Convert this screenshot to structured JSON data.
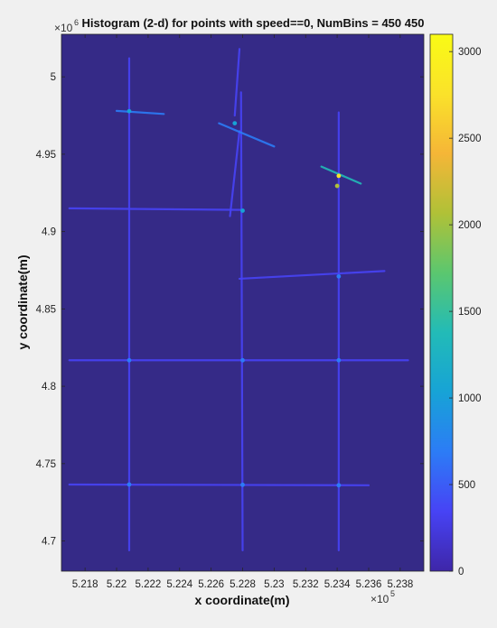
{
  "chart_data": {
    "type": "heatmap",
    "title": "Histogram (2-d) for points with speed==0, NumBins = 450  450",
    "xlabel": "x coordinate(m)",
    "ylabel": "y coordinate(m)",
    "x_exponent_label": "×10",
    "x_exponent": "5",
    "y_exponent_label": "×10",
    "y_exponent": "6",
    "xlim": [
      5.2165,
      5.2395
    ],
    "ylim": [
      4.6805,
      5.0275
    ],
    "x_ticks": [
      5.218,
      5.22,
      5.222,
      5.224,
      5.226,
      5.228,
      5.23,
      5.232,
      5.234,
      5.236,
      5.238
    ],
    "x_tick_labels": [
      "5.218",
      "5.22",
      "5.222",
      "5.224",
      "5.226",
      "5.228",
      "5.23",
      "5.232",
      "5.234",
      "5.236",
      "5.238"
    ],
    "y_ticks": [
      4.7,
      4.75,
      4.8,
      4.85,
      4.9,
      4.95,
      5.0
    ],
    "y_tick_labels": [
      "4.7",
      "4.75",
      "4.8",
      "4.85",
      "4.9",
      "4.95",
      "5"
    ],
    "colorbar": {
      "range": [
        0,
        3100
      ],
      "ticks": [
        0,
        500,
        1000,
        1500,
        2000,
        2500,
        3000
      ],
      "tick_labels": [
        "0",
        "500",
        "1000",
        "1500",
        "2000",
        "2500",
        "3000"
      ],
      "colormap": [
        "#3e26a8",
        "#4743f5",
        "#2c7cf6",
        "#17a3d6",
        "#22bbb7",
        "#5bc76f",
        "#b0c137",
        "#f5b637",
        "#fae22a",
        "#f9fb15"
      ]
    },
    "background_color": "#352a87",
    "segments": [
      {
        "name": "road-v1",
        "x": [
          5.2208,
          5.2208
        ],
        "y": [
          4.694,
          5.012
        ],
        "intensity": 450
      },
      {
        "name": "road-v2",
        "x": [
          5.228,
          5.2279
        ],
        "y": [
          4.694,
          4.99
        ],
        "intensity": 400
      },
      {
        "name": "road-v3",
        "x": [
          5.2341,
          5.2341
        ],
        "y": [
          4.694,
          4.977
        ],
        "intensity": 400
      },
      {
        "name": "road-v2-upper",
        "x": [
          5.2275,
          5.2278
        ],
        "y": [
          4.975,
          5.018
        ],
        "intensity": 500
      },
      {
        "name": "road-v2-branch",
        "x": [
          5.2272,
          5.2278
        ],
        "y": [
          4.91,
          4.965
        ],
        "intensity": 350
      },
      {
        "name": "road-h1",
        "x": [
          5.217,
          5.2385
        ],
        "y": [
          4.8168,
          4.8168
        ],
        "intensity": 500
      },
      {
        "name": "road-h2",
        "x": [
          5.217,
          5.236
        ],
        "y": [
          4.7365,
          4.736
        ],
        "intensity": 450
      },
      {
        "name": "road-h3",
        "x": [
          5.217,
          5.228
        ],
        "y": [
          4.915,
          4.914
        ],
        "intensity": 350
      },
      {
        "name": "road-h4",
        "x": [
          5.2278,
          5.237
        ],
        "y": [
          4.8695,
          4.8745
        ],
        "intensity": 300
      },
      {
        "name": "diag-1",
        "x": [
          5.22,
          5.223
        ],
        "y": [
          4.978,
          4.976
        ],
        "intensity": 600
      },
      {
        "name": "diag-2",
        "x": [
          5.2265,
          5.23
        ],
        "y": [
          4.97,
          4.955
        ],
        "intensity": 650
      },
      {
        "name": "diag-3",
        "x": [
          5.233,
          5.2355
        ],
        "y": [
          4.942,
          4.931
        ],
        "intensity": 1500
      }
    ],
    "hotspots": [
      {
        "x": 5.2208,
        "y": 4.9778,
        "value": 900
      },
      {
        "x": 5.2275,
        "y": 4.97,
        "value": 1100
      },
      {
        "x": 5.2341,
        "y": 4.936,
        "value": 2900
      },
      {
        "x": 5.234,
        "y": 4.9295,
        "value": 2200
      },
      {
        "x": 5.228,
        "y": 4.9135,
        "value": 1200
      },
      {
        "x": 5.2208,
        "y": 4.8168,
        "value": 700
      },
      {
        "x": 5.228,
        "y": 4.8168,
        "value": 800
      },
      {
        "x": 5.2341,
        "y": 4.8168,
        "value": 700
      },
      {
        "x": 5.2208,
        "y": 4.7365,
        "value": 700
      },
      {
        "x": 5.228,
        "y": 4.7363,
        "value": 600
      },
      {
        "x": 5.2341,
        "y": 4.736,
        "value": 600
      },
      {
        "x": 5.2341,
        "y": 4.871,
        "value": 700
      }
    ]
  }
}
